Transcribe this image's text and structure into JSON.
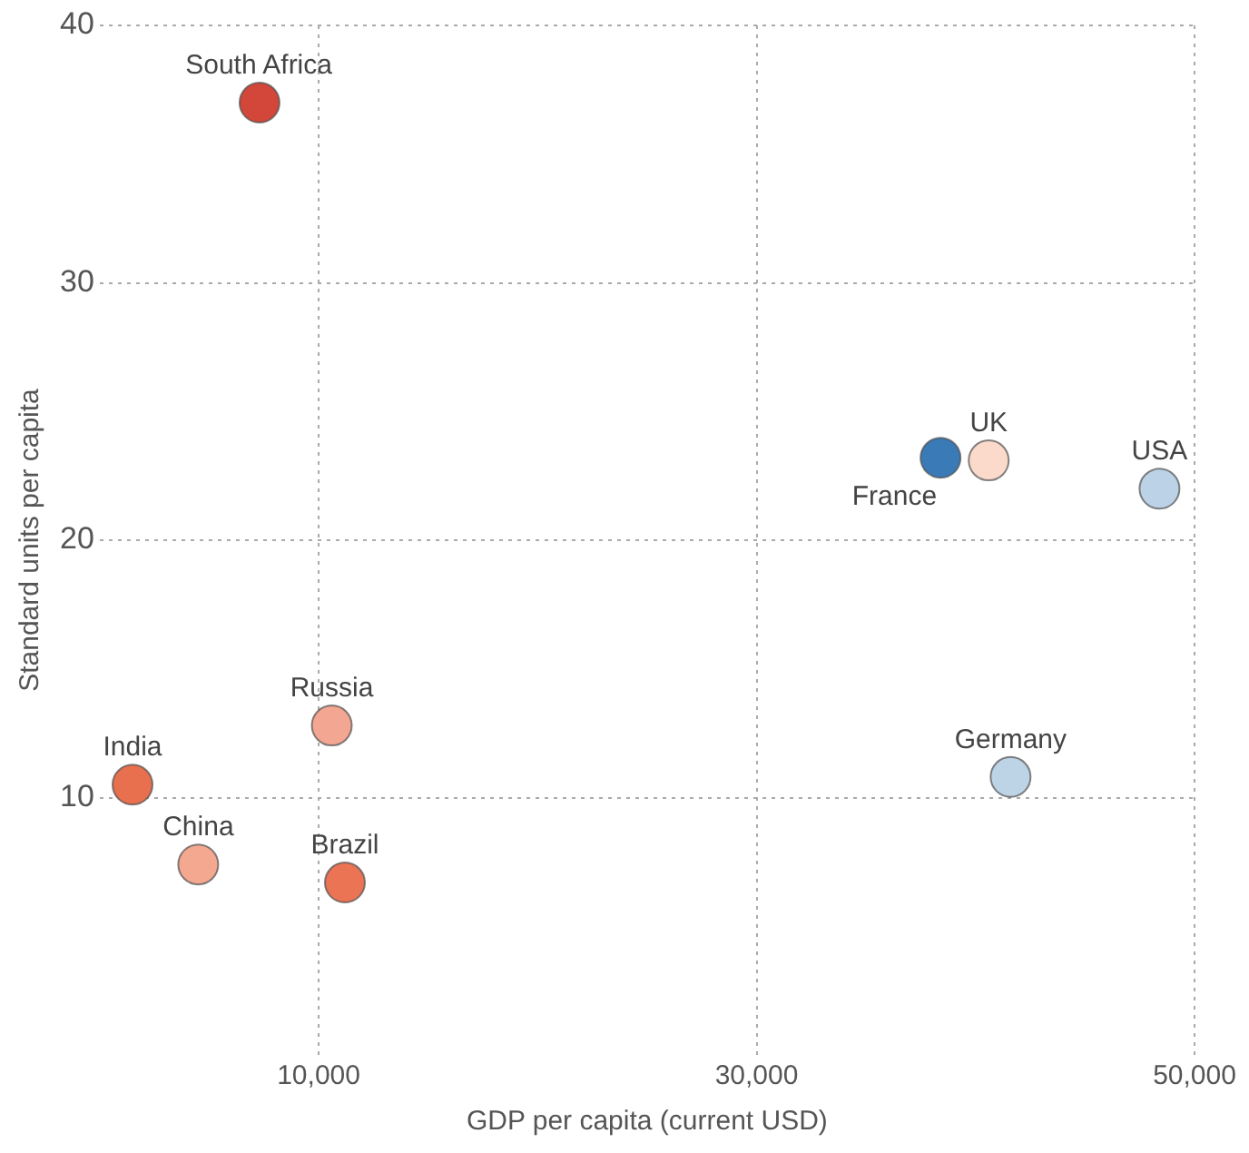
{
  "chart_data": {
    "type": "scatter",
    "xlabel": "GDP per capita (current USD)",
    "ylabel": "Standard units per capita",
    "x": [
      7300,
      1500,
      4500,
      10600,
      11200,
      40600,
      38400,
      48400,
      41600
    ],
    "values": [
      37,
      10.5,
      7.4,
      12.8,
      6.7,
      23.1,
      23.2,
      22,
      10.8
    ],
    "colors": [
      "#d2473a",
      "#e8704f",
      "#f4a890",
      "#f3a692",
      "#ea7453",
      "#fbdacb",
      "#3a7ab6",
      "#bcd2e6",
      "#bdd3e6"
    ],
    "xlim": [
      0,
      50000
    ],
    "xticks": [
      {
        "value": 10000,
        "label": "10,000"
      },
      {
        "value": 30000,
        "label": "30,000"
      },
      {
        "value": 50000,
        "label": "50,000"
      }
    ],
    "ylim": [
      0,
      40
    ],
    "yticks": [
      10,
      20,
      30,
      40
    ],
    "grid": true,
    "legend": false,
    "marker": "circle",
    "annotations": [
      {
        "text": "South Africa",
        "x": 7300,
        "y": 37
      },
      {
        "text": "India",
        "x": 1500,
        "y": 10.5
      },
      {
        "text": "China",
        "x": 4500,
        "y": 7.4
      },
      {
        "text": "Russia",
        "x": 10600,
        "y": 12.8
      },
      {
        "text": "Brazil",
        "x": 11200,
        "y": 6.7
      },
      {
        "text": "UK",
        "x": 40600,
        "y": 23.1
      },
      {
        "text": "France",
        "x": 38400,
        "y": 23.2
      },
      {
        "text": "USA",
        "x": 48400,
        "y": 22
      },
      {
        "text": "Germany",
        "x": 41600,
        "y": 10.8
      }
    ]
  }
}
